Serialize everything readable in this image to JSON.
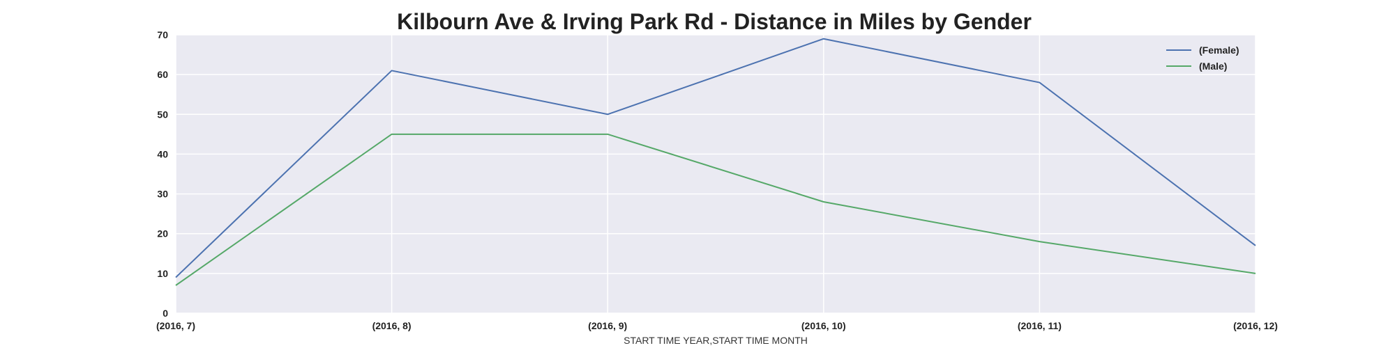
{
  "chart_data": {
    "type": "line",
    "title": "Kilbourn Ave & Irving Park Rd - Distance in Miles by Gender",
    "xlabel": "START TIME YEAR,START TIME MONTH",
    "ylabel": "",
    "categories": [
      "(2016, 7)",
      "(2016, 8)",
      "(2016, 9)",
      "(2016, 10)",
      "(2016, 11)",
      "(2016, 12)"
    ],
    "ylim": [
      0,
      70
    ],
    "yticks": [
      0,
      10,
      20,
      30,
      40,
      50,
      60,
      70
    ],
    "grid": true,
    "legend_position": "top-right",
    "series": [
      {
        "name": "(Female)",
        "color": "#4c72b0",
        "values": [
          9,
          61,
          50,
          69,
          58,
          17
        ]
      },
      {
        "name": "(Male)",
        "color": "#55a868",
        "values": [
          7,
          45,
          45,
          28,
          18,
          10
        ]
      }
    ]
  }
}
